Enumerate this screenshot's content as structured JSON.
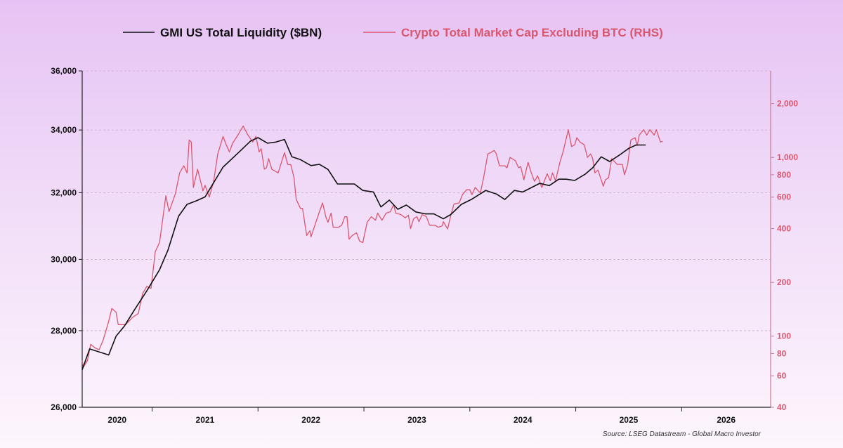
{
  "chart_data": {
    "type": "line",
    "title": "",
    "legend_position": "top",
    "source": "Source: LSEG Datastream - Global Macro Investor",
    "x_axis": {
      "type": "date",
      "tick_labels": [
        "2020",
        "2021",
        "2022",
        "2023",
        "2024",
        "2025",
        "2026"
      ],
      "range": [
        2020.34,
        2026.84
      ]
    },
    "y_left": {
      "scale": "log",
      "range": [
        26000,
        36000
      ],
      "tick_labels": [
        "26,000",
        "28,000",
        "30,000",
        "32,000",
        "34,000",
        "36,000"
      ],
      "ticks": [
        26000,
        28000,
        30000,
        32000,
        34000,
        36000
      ],
      "grid": true
    },
    "y_right": {
      "scale": "log",
      "range": [
        40,
        3050
      ],
      "tick_labels": [
        "40",
        "60",
        "80",
        "100",
        "200",
        "400",
        "600",
        "800",
        "1,000",
        "2,000"
      ],
      "ticks": [
        40,
        60,
        80,
        100,
        200,
        400,
        600,
        800,
        1000,
        2000
      ]
    },
    "series": [
      {
        "name": "GMI US Total Liquidity ($BN)",
        "axis": "left",
        "color": "#111111",
        "points": [
          [
            2020.34,
            26960
          ],
          [
            2020.41,
            27510
          ],
          [
            2020.59,
            27350
          ],
          [
            2020.66,
            27850
          ],
          [
            2020.74,
            28130
          ],
          [
            2020.84,
            28600
          ],
          [
            2020.95,
            29100
          ],
          [
            2021.07,
            29700
          ],
          [
            2021.15,
            30270
          ],
          [
            2021.25,
            31280
          ],
          [
            2021.33,
            31640
          ],
          [
            2021.42,
            31750
          ],
          [
            2021.5,
            31870
          ],
          [
            2021.67,
            32800
          ],
          [
            2021.83,
            33310
          ],
          [
            2021.93,
            33640
          ],
          [
            2022.0,
            33750
          ],
          [
            2022.09,
            33570
          ],
          [
            2022.16,
            33600
          ],
          [
            2022.25,
            33690
          ],
          [
            2022.32,
            33130
          ],
          [
            2022.4,
            33040
          ],
          [
            2022.5,
            32850
          ],
          [
            2022.58,
            32890
          ],
          [
            2022.66,
            32730
          ],
          [
            2022.75,
            32270
          ],
          [
            2022.91,
            32270
          ],
          [
            2022.99,
            32070
          ],
          [
            2023.09,
            32020
          ],
          [
            2023.16,
            31560
          ],
          [
            2023.24,
            31770
          ],
          [
            2023.32,
            31490
          ],
          [
            2023.4,
            31620
          ],
          [
            2023.49,
            31410
          ],
          [
            2023.58,
            31350
          ],
          [
            2023.66,
            31350
          ],
          [
            2023.75,
            31200
          ],
          [
            2023.82,
            31330
          ],
          [
            2023.92,
            31640
          ],
          [
            2024.02,
            31800
          ],
          [
            2024.15,
            32070
          ],
          [
            2024.25,
            31960
          ],
          [
            2024.33,
            31790
          ],
          [
            2024.42,
            32070
          ],
          [
            2024.5,
            32020
          ],
          [
            2024.66,
            32290
          ],
          [
            2024.75,
            32220
          ],
          [
            2024.84,
            32420
          ],
          [
            2024.91,
            32420
          ],
          [
            2024.99,
            32380
          ],
          [
            2025.09,
            32580
          ],
          [
            2025.16,
            32780
          ],
          [
            2025.24,
            33130
          ],
          [
            2025.32,
            32980
          ],
          [
            2025.41,
            33180
          ],
          [
            2025.5,
            33400
          ],
          [
            2025.57,
            33510
          ],
          [
            2025.66,
            33510
          ]
        ]
      },
      {
        "name": "Crypto Total Market Cap Excluding BTC (RHS)",
        "axis": "right",
        "color": "#d9576e",
        "points": [
          [
            2020.34,
            73
          ],
          [
            2020.35,
            67
          ],
          [
            2020.39,
            73
          ],
          [
            2020.42,
            90
          ],
          [
            2020.46,
            86
          ],
          [
            2020.5,
            84
          ],
          [
            2020.54,
            96
          ],
          [
            2020.59,
            121
          ],
          [
            2020.62,
            143
          ],
          [
            2020.66,
            136
          ],
          [
            2020.68,
            116
          ],
          [
            2020.75,
            116
          ],
          [
            2020.82,
            128
          ],
          [
            2020.87,
            134
          ],
          [
            2020.91,
            173
          ],
          [
            2020.95,
            190
          ],
          [
            2020.99,
            185
          ],
          [
            2021.03,
            297
          ],
          [
            2021.07,
            334
          ],
          [
            2021.13,
            610
          ],
          [
            2021.16,
            497
          ],
          [
            2021.22,
            627
          ],
          [
            2021.26,
            820
          ],
          [
            2021.3,
            898
          ],
          [
            2021.33,
            820
          ],
          [
            2021.35,
            1253
          ],
          [
            2021.37,
            1220
          ],
          [
            2021.39,
            679
          ],
          [
            2021.43,
            859
          ],
          [
            2021.48,
            650
          ],
          [
            2021.5,
            698
          ],
          [
            2021.54,
            600
          ],
          [
            2021.58,
            730
          ],
          [
            2021.62,
            1047
          ],
          [
            2021.67,
            1310
          ],
          [
            2021.7,
            1178
          ],
          [
            2021.73,
            1075
          ],
          [
            2021.76,
            1200
          ],
          [
            2021.81,
            1334
          ],
          [
            2021.86,
            1500
          ],
          [
            2021.9,
            1350
          ],
          [
            2021.95,
            1220
          ],
          [
            2021.98,
            1310
          ],
          [
            2022.01,
            1075
          ],
          [
            2022.03,
            1120
          ],
          [
            2022.06,
            860
          ],
          [
            2022.08,
            875
          ],
          [
            2022.1,
            985
          ],
          [
            2022.13,
            860
          ],
          [
            2022.19,
            820
          ],
          [
            2022.25,
            1065
          ],
          [
            2022.28,
            915
          ],
          [
            2022.31,
            910
          ],
          [
            2022.34,
            770
          ],
          [
            2022.36,
            584
          ],
          [
            2022.4,
            519
          ],
          [
            2022.42,
            519
          ],
          [
            2022.46,
            366
          ],
          [
            2022.49,
            389
          ],
          [
            2022.5,
            360
          ],
          [
            2022.58,
            497
          ],
          [
            2022.61,
            557
          ],
          [
            2022.64,
            466
          ],
          [
            2022.66,
            434
          ],
          [
            2022.69,
            488
          ],
          [
            2022.71,
            407
          ],
          [
            2022.76,
            407
          ],
          [
            2022.79,
            418
          ],
          [
            2022.82,
            466
          ],
          [
            2022.84,
            466
          ],
          [
            2022.86,
            349
          ],
          [
            2022.89,
            366
          ],
          [
            2022.93,
            379
          ],
          [
            2022.96,
            340
          ],
          [
            2022.99,
            334
          ],
          [
            2023.03,
            434
          ],
          [
            2023.07,
            466
          ],
          [
            2023.11,
            445
          ],
          [
            2023.13,
            488
          ],
          [
            2023.17,
            445
          ],
          [
            2023.21,
            488
          ],
          [
            2023.25,
            497
          ],
          [
            2023.28,
            545
          ],
          [
            2023.3,
            488
          ],
          [
            2023.35,
            479
          ],
          [
            2023.39,
            459
          ],
          [
            2023.42,
            475
          ],
          [
            2023.44,
            400
          ],
          [
            2023.47,
            455
          ],
          [
            2023.5,
            466
          ],
          [
            2023.52,
            437
          ],
          [
            2023.55,
            479
          ],
          [
            2023.59,
            466
          ],
          [
            2023.62,
            418
          ],
          [
            2023.67,
            418
          ],
          [
            2023.7,
            407
          ],
          [
            2023.74,
            414
          ],
          [
            2023.75,
            437
          ],
          [
            2023.79,
            398
          ],
          [
            2023.82,
            475
          ],
          [
            2023.85,
            549
          ],
          [
            2023.9,
            557
          ],
          [
            2023.93,
            620
          ],
          [
            2023.97,
            660
          ],
          [
            2024.0,
            660
          ],
          [
            2024.02,
            620
          ],
          [
            2024.05,
            679
          ],
          [
            2024.08,
            650
          ],
          [
            2024.1,
            636
          ],
          [
            2024.13,
            770
          ],
          [
            2024.17,
            1047
          ],
          [
            2024.2,
            1067
          ],
          [
            2024.23,
            1095
          ],
          [
            2024.25,
            1047
          ],
          [
            2024.28,
            898
          ],
          [
            2024.33,
            898
          ],
          [
            2024.35,
            875
          ],
          [
            2024.38,
            1000
          ],
          [
            2024.43,
            960
          ],
          [
            2024.46,
            875
          ],
          [
            2024.48,
            890
          ],
          [
            2024.51,
            750
          ],
          [
            2024.55,
            940
          ],
          [
            2024.58,
            820
          ],
          [
            2024.61,
            735
          ],
          [
            2024.64,
            790
          ],
          [
            2024.68,
            679
          ],
          [
            2024.73,
            810
          ],
          [
            2024.76,
            740
          ],
          [
            2024.78,
            820
          ],
          [
            2024.81,
            740
          ],
          [
            2024.85,
            940
          ],
          [
            2024.88,
            1075
          ],
          [
            2024.93,
            1430
          ],
          [
            2024.96,
            1150
          ],
          [
            2024.99,
            1178
          ],
          [
            2025.01,
            1290
          ],
          [
            2025.04,
            1220
          ],
          [
            2025.08,
            1178
          ],
          [
            2025.11,
            1000
          ],
          [
            2025.14,
            1047
          ],
          [
            2025.16,
            985
          ],
          [
            2025.18,
            820
          ],
          [
            2025.21,
            850
          ],
          [
            2025.26,
            690
          ],
          [
            2025.28,
            750
          ],
          [
            2025.31,
            770
          ],
          [
            2025.34,
            985
          ],
          [
            2025.39,
            915
          ],
          [
            2025.44,
            915
          ],
          [
            2025.46,
            800
          ],
          [
            2025.49,
            915
          ],
          [
            2025.52,
            1253
          ],
          [
            2025.56,
            1290
          ],
          [
            2025.58,
            1165
          ],
          [
            2025.6,
            1334
          ],
          [
            2025.64,
            1430
          ],
          [
            2025.67,
            1334
          ],
          [
            2025.7,
            1430
          ],
          [
            2025.74,
            1334
          ],
          [
            2025.76,
            1430
          ],
          [
            2025.8,
            1220
          ],
          [
            2025.82,
            1230
          ]
        ]
      }
    ]
  }
}
